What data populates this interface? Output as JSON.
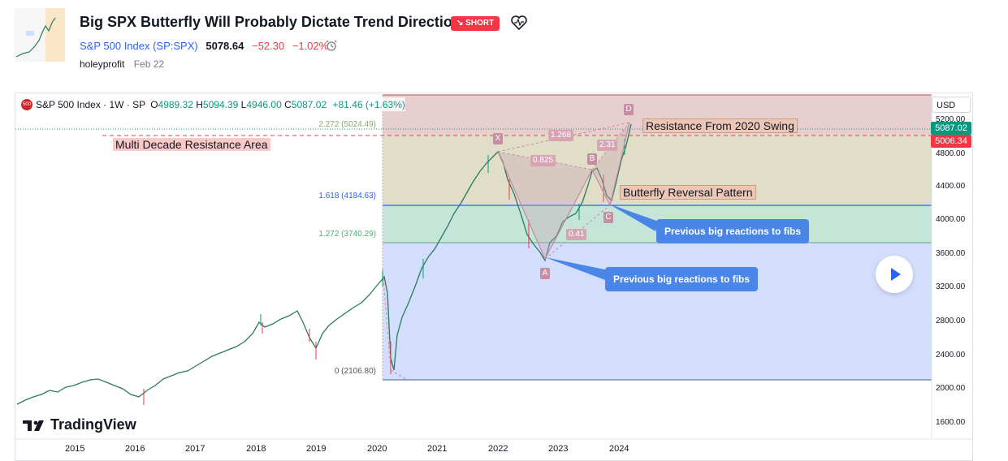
{
  "idea": {
    "title": "Big SPX Butterfly Will Probably Dictate Trend Direction.",
    "direction_label": "SHORT",
    "symbol_link": "S&P 500 Index (SP:SPX)",
    "price": "5078.64",
    "change": "−52.30",
    "change_pct": "−1.02%",
    "author": "holeyprofit",
    "date": "Feb 22"
  },
  "chart": {
    "legend_badge": "500",
    "legend_title": "S&P 500 Index · 1W · SP",
    "open_label": "O",
    "open": "4989.32",
    "high_label": "H",
    "high": "5094.39",
    "low_label": "L",
    "low": "4946.00",
    "close_label": "C",
    "close": "5087.02",
    "change": "+81.46 (+1.63%)",
    "currency": "USD",
    "current_price_tag": "5087.02",
    "resistance_price_tag": "5006.34",
    "watermark": "TradingView",
    "colors": {
      "up": "#089981",
      "down": "#f23645",
      "accent": "#2962ff"
    }
  },
  "chart_data": {
    "type": "candlestick",
    "y_axis_ticks": [
      "5200.00",
      "4800.00",
      "4400.00",
      "4000.00",
      "3600.00",
      "3200.00",
      "2800.00",
      "2400.00",
      "2000.00",
      "1600.00"
    ],
    "x_axis_ticks": [
      "2015",
      "2016",
      "2017",
      "2018",
      "2019",
      "2020",
      "2021",
      "2022",
      "2023",
      "2024"
    ],
    "fib_levels": [
      {
        "label": "2.272 (5024.49)"
      },
      {
        "label": "1.618 (4184.63)"
      },
      {
        "label": "1.272 (3740.29)"
      },
      {
        "label": "0 (2106.80)"
      }
    ],
    "pattern_points": [
      "X",
      "A",
      "B",
      "C",
      "D"
    ],
    "pattern_ratios": [
      "1.268",
      "0.825",
      "2.31",
      "0.41"
    ],
    "annotations": [
      "Multi Decade Resistance Area",
      "Resistance From 2020 Swing",
      "Butterfly Reversal Pattern",
      "Previous big reactions to fibs",
      "Previous big reactions to fibs"
    ]
  }
}
